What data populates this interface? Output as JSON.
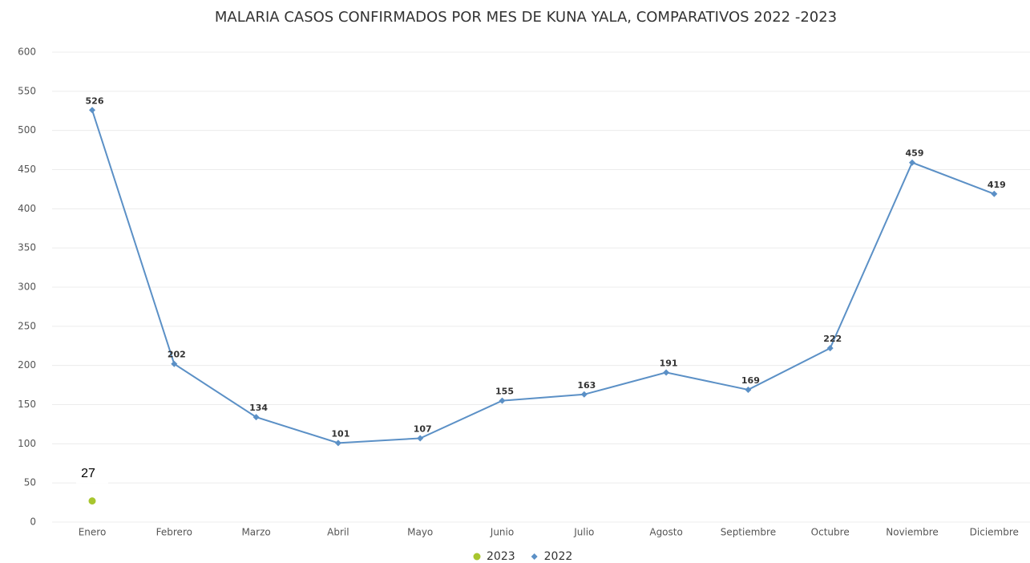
{
  "chart_data": {
    "type": "line",
    "title": "MALARIA CASOS CONFIRMADOS POR MES DE KUNA YALA, COMPARATIVOS 2022 -2023",
    "categories": [
      "Enero",
      "Febrero",
      "Marzo",
      "Abril",
      "Mayo",
      "Junio",
      "Julio",
      "Agosto",
      "Septiembre",
      "Octubre",
      "Noviembre",
      "Diciembre"
    ],
    "series": [
      {
        "name": "2023",
        "color": "#a8c62e",
        "marker": "circle",
        "values": [
          27,
          null,
          null,
          null,
          null,
          null,
          null,
          null,
          null,
          null,
          null,
          null
        ]
      },
      {
        "name": "2022",
        "color": "#5b90c6",
        "marker": "diamond",
        "values": [
          526,
          202,
          134,
          101,
          107,
          155,
          163,
          191,
          169,
          222,
          459,
          419
        ]
      }
    ],
    "ylim": [
      0,
      600
    ],
    "yticks": [
      0,
      50,
      100,
      150,
      200,
      250,
      300,
      350,
      400,
      450,
      500,
      550,
      600
    ],
    "grid": true,
    "legend": "bottom"
  }
}
